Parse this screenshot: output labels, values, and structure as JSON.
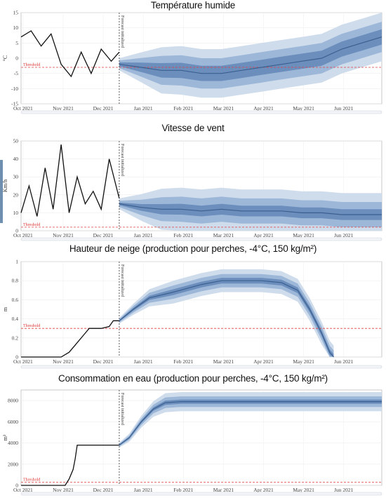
{
  "colors": {
    "observed": "#111111",
    "median": "#3b5f8f",
    "band_inner": "#6b8ebd",
    "band_mid": "#9db7d8",
    "band_outer": "#cfdcec",
    "threshold": "#e04040"
  },
  "chart_data": [
    {
      "type": "line",
      "title": "Température humide",
      "ylabel": "°C",
      "xticks": [
        "Oct 2021",
        "Nov 2021",
        "Dec 2021",
        "Jan 2021",
        "Feb 2021",
        "Mar 2021",
        "Apr 2021",
        "May 2021",
        "Jun 2021"
      ],
      "xlim": [
        0,
        9
      ],
      "ylim": [
        -15,
        15
      ],
      "yticks": [
        "15",
        "10",
        "5",
        "0",
        "-5",
        "-10",
        "-15"
      ],
      "forecast_start": 2.45,
      "forecast_label": "Forecast initialized",
      "threshold": {
        "label": "Threshold",
        "value": -3
      },
      "series": [
        {
          "kind": "observed",
          "x": [
            0,
            0.25,
            0.5,
            0.75,
            1,
            1.25,
            1.5,
            1.75,
            2,
            2.25,
            2.45
          ],
          "y": [
            7,
            9,
            4,
            8,
            -2,
            -6,
            2,
            -5,
            3,
            -1,
            2
          ]
        },
        {
          "kind": "forecast_median",
          "x": [
            2.45,
            3,
            3.5,
            4,
            4.5,
            5,
            5.5,
            6,
            6.5,
            7,
            7.5,
            8,
            8.5,
            9
          ],
          "y": [
            -2,
            -3,
            -4,
            -4,
            -5,
            -5,
            -4,
            -3,
            -2,
            -1,
            0,
            3,
            5,
            7
          ]
        }
      ],
      "band_widths": [
        2.5,
        5,
        8
      ]
    },
    {
      "type": "line",
      "title": "Vitesse de vent",
      "ylabel": "Km/h",
      "xticks": [
        "Oct 2021",
        "Nov 2021",
        "Dec 2021",
        "Jan 2021",
        "Feb 2021",
        "Mar 2021",
        "Apr 2021",
        "May 2021",
        "Jun 2021"
      ],
      "xlim": [
        0,
        9
      ],
      "ylim": [
        0,
        50
      ],
      "yticks": [
        "50",
        "40",
        "30",
        "20",
        "10",
        "0"
      ],
      "forecast_start": 2.45,
      "forecast_label": "Forecast initialized",
      "threshold": {
        "label": "Threshold",
        "value": 2
      },
      "series": [
        {
          "kind": "observed",
          "x": [
            0,
            0.2,
            0.4,
            0.6,
            0.8,
            1,
            1.2,
            1.4,
            1.6,
            1.8,
            2,
            2.2,
            2.45
          ],
          "y": [
            10,
            25,
            8,
            35,
            12,
            48,
            10,
            30,
            15,
            22,
            12,
            40,
            18
          ]
        },
        {
          "kind": "forecast_median",
          "x": [
            2.45,
            3,
            3.5,
            4,
            4.5,
            5,
            5.5,
            6,
            6.5,
            7,
            7.5,
            8,
            8.5,
            9
          ],
          "y": [
            15,
            13,
            12,
            12,
            11,
            12,
            11,
            11,
            11,
            10,
            10,
            9,
            9,
            9
          ]
        }
      ],
      "band_widths": [
        3,
        7,
        12
      ]
    },
    {
      "type": "line",
      "title": "Hauteur de neige (production pour perches, -4°C, 150 kg/m²)",
      "ylabel": "m",
      "xticks": [
        "Oct 2021",
        "Nov 2021",
        "Dec 2021",
        "Jan 2021",
        "Feb 2021",
        "Mar 2021",
        "Apr 2021",
        "May 2021",
        "Jun 2021"
      ],
      "xlim": [
        0,
        9
      ],
      "ylim": [
        0,
        1
      ],
      "yticks": [
        "1",
        "0.8",
        "0.6",
        "0.4",
        "0.2",
        "0"
      ],
      "forecast_start": 2.45,
      "forecast_label": "Forecast initialized",
      "threshold": {
        "label": "Threshold",
        "value": 0.3
      },
      "series": [
        {
          "kind": "observed",
          "x": [
            0,
            1,
            1.2,
            1.4,
            1.6,
            1.7,
            2,
            2.2,
            2.3,
            2.45
          ],
          "y": [
            0,
            0,
            0.05,
            0.15,
            0.25,
            0.3,
            0.3,
            0.32,
            0.38,
            0.38
          ]
        },
        {
          "kind": "forecast_median",
          "x": [
            2.45,
            2.8,
            3.2,
            3.8,
            4.5,
            5,
            5.5,
            6,
            6.5,
            6.9,
            7.2,
            7.5,
            7.7,
            7.8
          ],
          "y": [
            0.38,
            0.5,
            0.62,
            0.68,
            0.76,
            0.8,
            0.8,
            0.8,
            0.78,
            0.7,
            0.5,
            0.25,
            0.05,
            0
          ]
        }
      ],
      "band_widths": [
        0.03,
        0.07,
        0.12
      ]
    },
    {
      "type": "line",
      "title": "Consommation en eau (production pour perches, -4°C, 150 kg/m²)",
      "ylabel": "m³",
      "xticks": [
        "Oct 2021",
        "Nov 2021",
        "Dec 2021",
        "Jan 2021",
        "Feb 2021",
        "Mar 2021",
        "Apr 2021",
        "May 2021",
        "Jun 2021"
      ],
      "xlim": [
        0,
        9
      ],
      "ylim": [
        0,
        9000
      ],
      "yticks": [
        "8000",
        "6000",
        "4000",
        "2000",
        "0"
      ],
      "forecast_start": 2.45,
      "forecast_label": "Forecast initialized",
      "threshold": {
        "label": "Threshold",
        "value": 300
      },
      "series": [
        {
          "kind": "observed",
          "x": [
            0,
            1.1,
            1.2,
            1.3,
            1.35,
            1.4,
            2,
            2.45
          ],
          "y": [
            0,
            0,
            600,
            1500,
            2500,
            3800,
            3800,
            3800
          ]
        },
        {
          "kind": "forecast_median",
          "x": [
            2.45,
            2.7,
            3,
            3.3,
            3.6,
            4,
            5,
            6,
            7,
            8,
            9
          ],
          "y": [
            3800,
            4500,
            6000,
            7200,
            7800,
            7900,
            7900,
            7900,
            7900,
            7900,
            7900
          ]
        }
      ],
      "band_widths": [
        200,
        500,
        900
      ]
    }
  ]
}
